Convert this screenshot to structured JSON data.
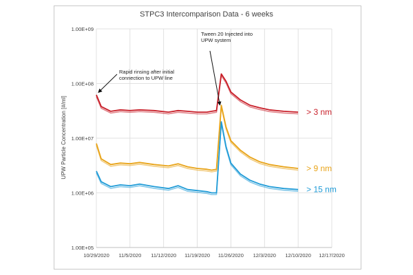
{
  "chart_data": {
    "type": "line",
    "title": "STPC3 Intercomparison Data - 6 weeks",
    "ylabel": "UPW Particle Concentration [#/ml]",
    "xlabel": "",
    "yscale": "log",
    "ylim": [
      100000,
      1000000000
    ],
    "y_ticks": [
      "1.00E+05",
      "1.00E+06",
      "1.00E+07",
      "1.00E+08",
      "1.00E+09"
    ],
    "x_ticks": [
      "10/29/2020",
      "11/5/2020",
      "11/12/2020",
      "11/19/2020",
      "11/26/2020",
      "12/3/2020",
      "12/10/2020",
      "12/17/2020"
    ],
    "xlim": [
      "10/29/2020",
      "12/17/2020"
    ],
    "grid": true,
    "series": [
      {
        "name": "> 3 nm",
        "color": "#c81e28",
        "x": [
          "10/29/2020",
          "10/30/2020",
          "11/1/2020",
          "11/3/2020",
          "11/5/2020",
          "11/7/2020",
          "11/10/2020",
          "11/13/2020",
          "11/15/2020",
          "11/17/2020",
          "11/19/2020",
          "11/21/2020",
          "11/22/2020",
          "11/23/2020",
          "11/24/2020",
          "11/25/2020",
          "11/26/2020",
          "11/28/2020",
          "11/30/2020",
          "12/2/2020",
          "12/4/2020",
          "12/7/2020",
          "12/10/2020"
        ],
        "values": [
          62000000,
          38000000,
          31000000,
          33000000,
          32000000,
          33000000,
          32000000,
          30000000,
          32000000,
          31000000,
          30000000,
          30000000,
          31000000,
          32000000,
          150000000,
          110000000,
          70000000,
          50000000,
          40000000,
          36000000,
          33000000,
          31000000,
          30000000
        ]
      },
      {
        "name": "> 9 nm",
        "color": "#e8a317",
        "x": [
          "10/29/2020",
          "10/30/2020",
          "11/1/2020",
          "11/3/2020",
          "11/5/2020",
          "11/7/2020",
          "11/10/2020",
          "11/13/2020",
          "11/15/2020",
          "11/17/2020",
          "11/19/2020",
          "11/21/2020",
          "11/22/2020",
          "11/23/2020",
          "11/24/2020",
          "11/25/2020",
          "11/26/2020",
          "11/28/2020",
          "11/30/2020",
          "12/2/2020",
          "12/4/2020",
          "12/7/2020",
          "12/10/2020"
        ],
        "values": [
          8000000,
          4200000,
          3300000,
          3500000,
          3400000,
          3600000,
          3300000,
          3100000,
          3400000,
          3000000,
          2800000,
          2700000,
          2600000,
          2700000,
          40000000,
          16000000,
          9000000,
          6000000,
          4500000,
          3700000,
          3300000,
          3000000,
          2800000
        ]
      },
      {
        "name": "> 15 nm",
        "color": "#1f9bd7",
        "x": [
          "10/29/2020",
          "10/30/2020",
          "11/1/2020",
          "11/3/2020",
          "11/5/2020",
          "11/7/2020",
          "11/10/2020",
          "11/13/2020",
          "11/15/2020",
          "11/17/2020",
          "11/19/2020",
          "11/21/2020",
          "11/22/2020",
          "11/23/2020",
          "11/24/2020",
          "11/25/2020",
          "11/26/2020",
          "11/28/2020",
          "11/30/2020",
          "12/2/2020",
          "12/4/2020",
          "12/7/2020",
          "12/10/2020"
        ],
        "values": [
          2500000,
          1600000,
          1300000,
          1400000,
          1350000,
          1450000,
          1300000,
          1200000,
          1350000,
          1150000,
          1100000,
          1050000,
          1000000,
          1000000,
          20000000,
          7000000,
          3500000,
          2200000,
          1700000,
          1450000,
          1300000,
          1200000,
          1150000
        ]
      }
    ],
    "annotations": [
      {
        "lines": [
          "Rapid rinsing after initial",
          "connection to UPW line"
        ],
        "x": "10/29/2020",
        "y": 65000000
      },
      {
        "lines": [
          "Tween 20 Injected into",
          "UPW system"
        ],
        "x": "11/24/2020",
        "y": 34000000
      }
    ]
  }
}
